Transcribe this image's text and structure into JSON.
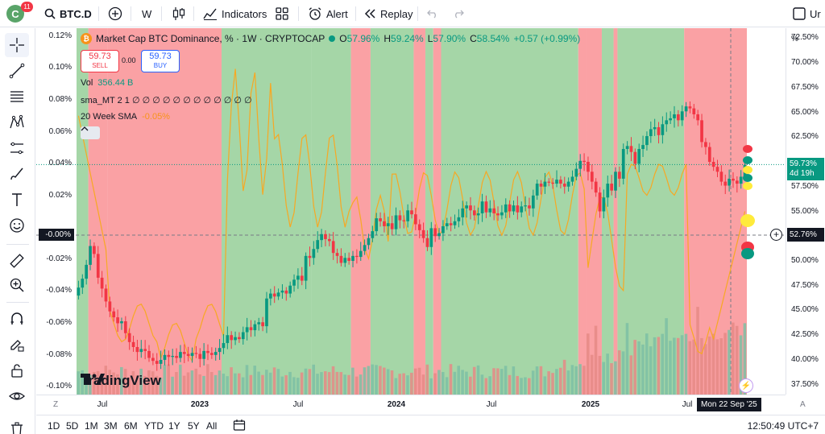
{
  "topbar": {
    "avatar_letter": "C",
    "notification_count": "11",
    "symbol": "BTC.D",
    "interval": "W",
    "indicators_label": "Indicators",
    "alert_label": "Alert",
    "replay_label": "Replay",
    "right_cut_label": "Ur"
  },
  "legend": {
    "title": "Market Cap BTC Dominance, % · 1W · CRYPTOCAP",
    "coin_letter": "₿",
    "open_label": "O",
    "open": "57.96%",
    "high_label": "H",
    "high": "59.24%",
    "low_label": "L",
    "low": "57.90%",
    "close_label": "C",
    "close": "58.54%",
    "change": "+0.57 (+0.99%)",
    "sell_price": "59.73",
    "sell_label": "SELL",
    "spread": "0.00",
    "buy_price": "59.73",
    "buy_label": "BUY",
    "vol_label": "Vol",
    "vol_value": "356.44 B",
    "sma_mt_label": "sma_MT 2 1",
    "sma_mt_values": "∅ ∅ ∅ ∅ ∅ ∅ ∅ ∅ ∅ ∅ ∅ ∅",
    "sma20_label": "20 Week SMA",
    "sma20_value": "-0.05%"
  },
  "left_scale": [
    "0.12%",
    "0.10%",
    "0.08%",
    "0.06%",
    "0.04%",
    "0.02%",
    "-0.00%",
    "-0.02%",
    "-0.04%",
    "-0.06%",
    "-0.08%",
    "-0.10%"
  ],
  "left_cross_label": "-0.00%",
  "right_scale": {
    "unit": "%",
    "ticks": [
      "72.50%",
      "70.00%",
      "67.50%",
      "65.00%",
      "62.50%",
      "60.00%",
      "57.50%",
      "55.00%",
      "52.50%",
      "50.00%",
      "47.50%",
      "45.00%",
      "42.50%",
      "40.00%",
      "37.50%"
    ],
    "last_price": "59.73%",
    "countdown": "4d 19h",
    "cross_price": "52.76%"
  },
  "time_axis": {
    "labels": [
      "Jul",
      "2023",
      "Jul",
      "2024",
      "Jul",
      "2025",
      "Jul"
    ],
    "bold": [
      false,
      true,
      false,
      true,
      false,
      true,
      false
    ],
    "cross_time": "Mon 22 Sep '25",
    "left_corner": "Z",
    "right_corner": "A"
  },
  "ranges": [
    "1D",
    "5D",
    "1M",
    "3M",
    "6M",
    "YTD",
    "1Y",
    "5Y",
    "All"
  ],
  "clock": "12:50:49 UTC+7",
  "watermark": "TradingView",
  "colors": {
    "up": "#089981",
    "down": "#f23645",
    "green_zone": "#a5d6a7",
    "red_zone": "#faa1a4",
    "sma_line": "#f7a823"
  },
  "chart_data": {
    "type": "candlestick",
    "symbol": "BTC.D",
    "interval": "1W",
    "y_right_range": [
      36.5,
      73.5
    ],
    "y_left_range": [
      -0.105,
      0.125
    ],
    "close": [
      47.3,
      48.2,
      49.6,
      51.5,
      50.7,
      48.3,
      47.2,
      45.9,
      44.9,
      44.3,
      43.7,
      43.9,
      42.7,
      41.8,
      41.3,
      40.8,
      41.1,
      40.9,
      40.2,
      39.9,
      39.6,
      40.0,
      40.5,
      40.3,
      40.4,
      40.2,
      40.8,
      40.6,
      40.4,
      40.7,
      40.6,
      40.1,
      40.9,
      40.7,
      40.5,
      40.8,
      41.2,
      41.7,
      42.5,
      42.0,
      42.3,
      42.1,
      42.8,
      43.3,
      43.0,
      43.6,
      43.8,
      43.4,
      46.2,
      46.7,
      46.4,
      46.8,
      47.0,
      46.7,
      47.5,
      48.1,
      48.5,
      48.0,
      50.5,
      50.3,
      51.2,
      52.1,
      52.7,
      52.2,
      52.0,
      50.8,
      50.5,
      49.8,
      50.3,
      50.0,
      50.5,
      50.4,
      51.0,
      51.6,
      52.3,
      53.0,
      54.3,
      54.0,
      53.5,
      53.8,
      53.2,
      54.6,
      54.1,
      54.0,
      55.1,
      54.7,
      53.7,
      53.1,
      52.3,
      51.4,
      53.3,
      52.5,
      52.8,
      53.5,
      53.8,
      53.6,
      54.0,
      54.4,
      55.3,
      55.6,
      55.1,
      54.6,
      54.8,
      56.0,
      54.9,
      55.3,
      54.8,
      54.6,
      54.9,
      55.7,
      55.0,
      55.6,
      54.9,
      55.5,
      55.6,
      55.3,
      56.6,
      57.8,
      57.5,
      58.0,
      57.9,
      57.8,
      58.2,
      57.8,
      57.5,
      58.0,
      58.5,
      59.3,
      60.1,
      60.0,
      59.0,
      58.0,
      56.9,
      55.0,
      56.4,
      57.8,
      57.1,
      59.0,
      58.3,
      61.3,
      61.6,
      61.0,
      59.8,
      61.3,
      61.7,
      62.6,
      63.3,
      63.5,
      62.7,
      63.8,
      64.2,
      64.4,
      64.8,
      64.2,
      65.1,
      65.6,
      65.4,
      64.8,
      64.2,
      62.0,
      61.5,
      60.0,
      59.5,
      59.0,
      58.0,
      57.6,
      58.3,
      58.1,
      57.8,
      58.5,
      59.7
    ]
  }
}
